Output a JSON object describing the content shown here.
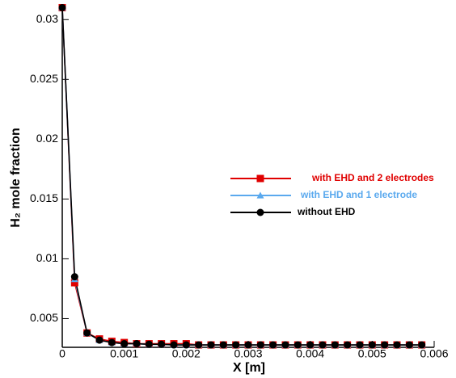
{
  "chart_data": {
    "type": "line",
    "xlabel": "X [m]",
    "ylabel": "H₂ mole fraction",
    "x": [
      0,
      0.0002,
      0.0004,
      0.0006,
      0.0008,
      0.001,
      0.0012,
      0.0014,
      0.0016,
      0.0018,
      0.002,
      0.0022,
      0.0024,
      0.0026,
      0.0028,
      0.003,
      0.0032,
      0.0034,
      0.0036,
      0.0038,
      0.004,
      0.0042,
      0.0044,
      0.0046,
      0.0048,
      0.005,
      0.0052,
      0.0054,
      0.0056,
      0.0058
    ],
    "series": [
      {
        "name": "with EHD and 2 electrodes",
        "color": "#e00000",
        "marker": "square",
        "values": [
          0.031,
          0.008,
          0.0038,
          0.0033,
          0.0031,
          0.003,
          0.0029,
          0.0029,
          0.0029,
          0.0029,
          0.0029,
          0.0028,
          0.0028,
          0.0028,
          0.0028,
          0.0028,
          0.0028,
          0.0028,
          0.0028,
          0.0028,
          0.0028,
          0.0028,
          0.0028,
          0.0028,
          0.0028,
          0.0028,
          0.0028,
          0.0028,
          0.0028,
          0.0028
        ]
      },
      {
        "name": "with EHD and 1 electrode",
        "color": "#5aa9ee",
        "marker": "triangle",
        "values": [
          0.031,
          0.0083,
          0.0038,
          0.0032,
          0.003,
          0.0029,
          0.0029,
          0.00285,
          0.00285,
          0.0028,
          0.0028,
          0.0028,
          0.0028,
          0.0028,
          0.0028,
          0.0028,
          0.0028,
          0.0028,
          0.0028,
          0.0028,
          0.0028,
          0.0028,
          0.0028,
          0.0028,
          0.0028,
          0.0028,
          0.0028,
          0.0028,
          0.0028,
          0.0028
        ]
      },
      {
        "name": "without EHD",
        "color": "#000000",
        "marker": "circle",
        "values": [
          0.031,
          0.0085,
          0.0038,
          0.0032,
          0.003,
          0.0029,
          0.0029,
          0.00285,
          0.00285,
          0.0028,
          0.0028,
          0.0028,
          0.0028,
          0.0028,
          0.0028,
          0.0028,
          0.0028,
          0.0028,
          0.0028,
          0.0028,
          0.0028,
          0.0028,
          0.0028,
          0.0028,
          0.0028,
          0.0028,
          0.0028,
          0.0028,
          0.0028,
          0.0028
        ]
      }
    ],
    "xlim": [
      0,
      0.006
    ],
    "xticks": [
      0,
      0.001,
      0.002,
      0.003,
      0.004,
      0.005,
      0.006
    ],
    "ylim": [
      0.0026,
      0.0311
    ],
    "yticks": [
      0.005,
      0.01,
      0.015,
      0.02,
      0.025,
      0.03
    ]
  }
}
